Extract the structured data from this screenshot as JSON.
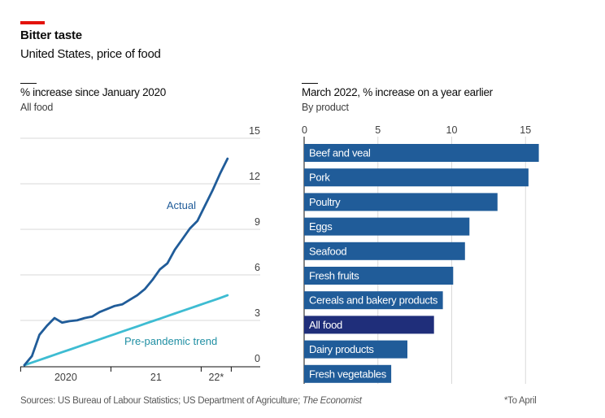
{
  "header": {
    "title": "Bitter taste",
    "subtitle": "United States, price of food",
    "accent_color": "#e3120b"
  },
  "footer": {
    "source_prefix": "Sources: US Bureau of Labour Statistics; US Department of Agriculture; ",
    "source_italic": "The Economist",
    "note": "*To April"
  },
  "chart_data": [
    {
      "type": "line",
      "title": "% increase since January 2020",
      "subtitle": "All food",
      "xlabel": "",
      "ylabel": "",
      "ylim": [
        0,
        15
      ],
      "yticks": [
        0,
        3,
        6,
        9,
        12,
        15
      ],
      "y_axis_side": "right",
      "grid": true,
      "x_ticks_months_from_jan2020": [
        -0.5,
        11.5,
        23.5,
        27.5
      ],
      "x_tick_labels": [
        {
          "label": "2020",
          "month_center": 5.5
        },
        {
          "label": "21",
          "month_center": 17.5
        },
        {
          "label": "22*",
          "month_center": 25.5
        }
      ],
      "x": [
        "2020-01",
        "2020-02",
        "2020-03",
        "2020-04",
        "2020-05",
        "2020-06",
        "2020-07",
        "2020-08",
        "2020-09",
        "2020-10",
        "2020-11",
        "2020-12",
        "2021-01",
        "2021-02",
        "2021-03",
        "2021-04",
        "2021-05",
        "2021-06",
        "2021-07",
        "2021-08",
        "2021-09",
        "2021-10",
        "2021-11",
        "2021-12",
        "2022-01",
        "2022-02",
        "2022-03",
        "2022-04"
      ],
      "series": [
        {
          "name": "Actual",
          "color": "#205c99",
          "values": [
            0.0,
            0.6,
            2.0,
            2.6,
            3.1,
            2.8,
            2.9,
            2.95,
            3.1,
            3.2,
            3.5,
            3.7,
            3.9,
            4.0,
            4.3,
            4.6,
            5.0,
            5.6,
            6.3,
            6.7,
            7.6,
            8.3,
            9.0,
            9.5,
            10.5,
            11.5,
            12.6,
            13.6
          ]
        },
        {
          "name": "Pre-pandemic trend",
          "color": "#3ebcd2",
          "values": [
            0.0,
            0.17,
            0.34,
            0.51,
            0.68,
            0.85,
            1.02,
            1.19,
            1.36,
            1.53,
            1.7,
            1.87,
            2.04,
            2.21,
            2.38,
            2.55,
            2.72,
            2.89,
            3.06,
            3.23,
            3.4,
            3.57,
            3.74,
            3.91,
            4.08,
            4.25,
            4.42,
            4.6
          ]
        }
      ],
      "annotations": [
        {
          "text": "Actual",
          "series": "Actual"
        },
        {
          "text": "Pre-pandemic trend",
          "series": "Pre-pandemic trend"
        }
      ]
    },
    {
      "type": "bar",
      "orientation": "horizontal",
      "title": "March 2022, % increase on a year earlier",
      "subtitle": "By product",
      "xlim": [
        0,
        16
      ],
      "xticks": [
        0,
        5,
        10,
        15
      ],
      "x_axis_side": "top",
      "grid": true,
      "categories": [
        "Beef and veal",
        "Pork",
        "Poultry",
        "Eggs",
        "Seafood",
        "Fresh fruits",
        "Cereals and bakery products",
        "All food",
        "Dairy products",
        "Fresh vegetables"
      ],
      "values": [
        15.9,
        15.2,
        13.1,
        11.2,
        10.9,
        10.1,
        9.4,
        8.8,
        7.0,
        5.9
      ],
      "colors": [
        "#205c99",
        "#205c99",
        "#205c99",
        "#205c99",
        "#205c99",
        "#205c99",
        "#205c99",
        "#1f2e7a",
        "#205c99",
        "#205c99"
      ],
      "highlight": "All food"
    }
  ]
}
